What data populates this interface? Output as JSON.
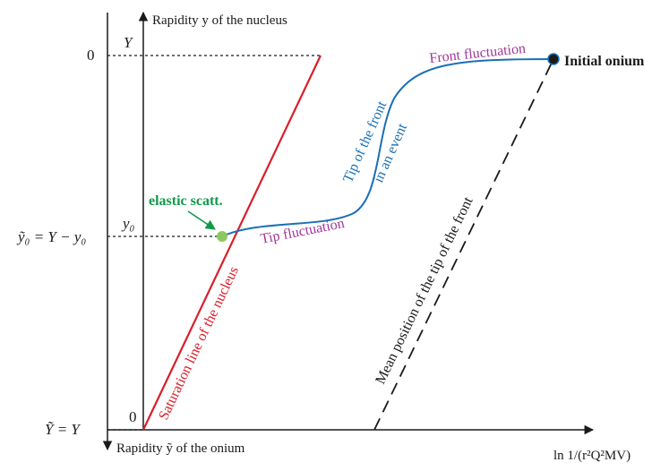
{
  "axes": {
    "nucleus_axis_label": "Rapidity y of the nucleus",
    "onium_axis_label": "Rapidity ỹ of the onium",
    "x_axis_label": "ln 1/(r²Q²MV)"
  },
  "left_labels": {
    "zero_top": "0",
    "y0_tilde": "ỹ₀ = Y − y₀",
    "Y_tilde": "Ỹ = Y"
  },
  "inner_labels": {
    "Y": "Y",
    "y0": "y₀",
    "zero_bottom": "0"
  },
  "annotations": {
    "initial_onium": "Initial onium",
    "front_fluctuation": "Front fluctuation",
    "tip_front_line1": "Tip of the front",
    "tip_front_line2": "in an event",
    "elastic_scatt": "elastic scatt.",
    "tip_fluctuation": "Tip fluctuation",
    "saturation_line": "Saturation line of the nucleus",
    "mean_position": "Mean position of the tip of the front"
  },
  "colors": {
    "saturation": "#d91e2a",
    "front": "#1a6fb5",
    "elastic": "#0e9a4a",
    "elastic_dot": "#8cc760",
    "annotation_purple": "#a0379a",
    "axis": "#1a1a1a"
  }
}
